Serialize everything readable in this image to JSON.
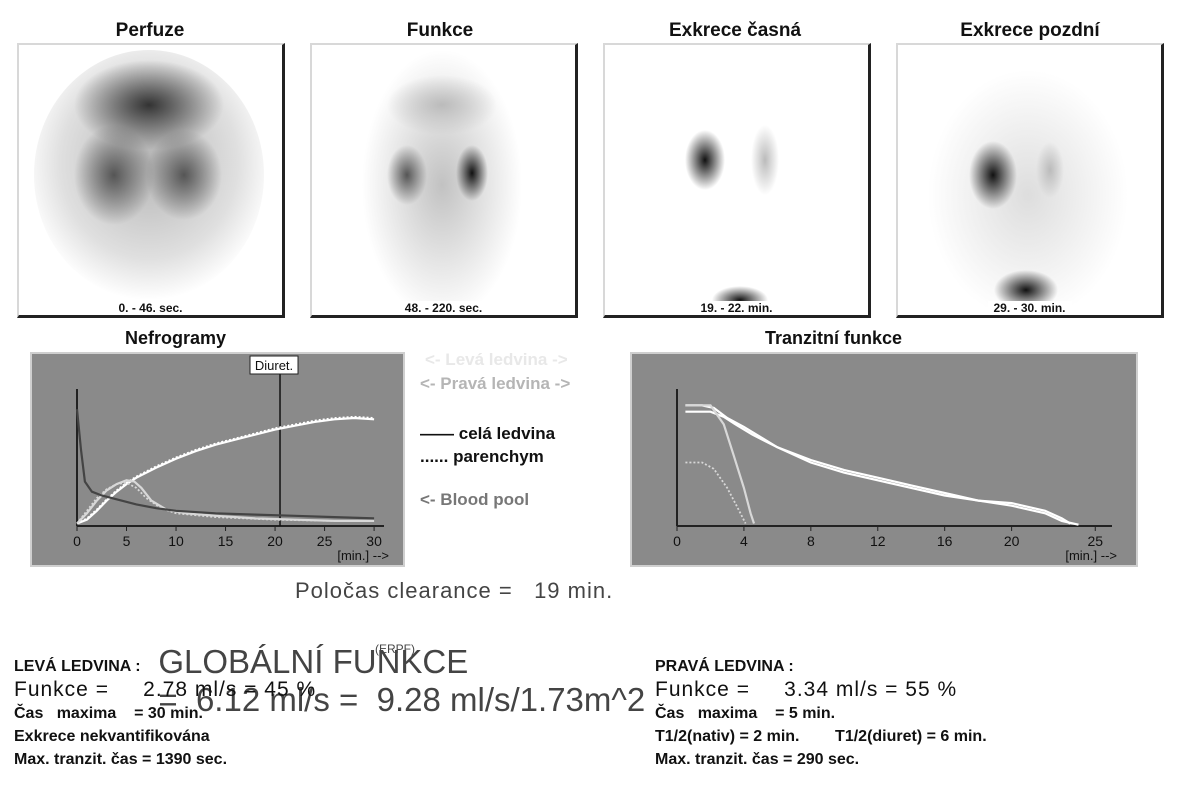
{
  "scans": [
    {
      "title": "Perfuze",
      "time": "0. - 46. sec."
    },
    {
      "title": "Funkce",
      "time": "48. - 220. sec."
    },
    {
      "title": "Exkrece časná",
      "time": "19. - 22. min."
    },
    {
      "title": "Exkrece pozdní",
      "time": "29. - 30. min."
    }
  ],
  "legend": {
    "left": "<- Levá ledvina ->",
    "right": "<- Pravá ledvina ->",
    "whole": "celá ledvina",
    "parenchyma": "parenchym",
    "blood_pool": "<- Blood pool",
    "whole_dash": "——",
    "parenchyma_dots": "......"
  },
  "chart_data": [
    {
      "type": "line",
      "title": "Nefrogramy",
      "xlabel": "[min.] -->",
      "xticks": [
        0,
        5,
        10,
        15,
        20,
        25,
        30
      ],
      "xlim": [
        0,
        31
      ],
      "annotation": {
        "label": "Diuret.",
        "x": 20.5
      },
      "series": [
        {
          "color": "#ffffff",
          "style": "solid",
          "points": [
            [
              0,
              0.02
            ],
            [
              1,
              0.05
            ],
            [
              2,
              0.12
            ],
            [
              3,
              0.2
            ],
            [
              4,
              0.27
            ],
            [
              5,
              0.33
            ],
            [
              6,
              0.38
            ],
            [
              8,
              0.46
            ],
            [
              10,
              0.53
            ],
            [
              12,
              0.59
            ],
            [
              14,
              0.64
            ],
            [
              16,
              0.68
            ],
            [
              18,
              0.72
            ],
            [
              20,
              0.76
            ],
            [
              22,
              0.79
            ],
            [
              24,
              0.82
            ],
            [
              26,
              0.84
            ],
            [
              28,
              0.85
            ],
            [
              30,
              0.84
            ]
          ]
        },
        {
          "color": "#ffffff",
          "style": "dotted",
          "points": [
            [
              0,
              0.02
            ],
            [
              1,
              0.06
            ],
            [
              2,
              0.13
            ],
            [
              3,
              0.21
            ],
            [
              4,
              0.28
            ],
            [
              5,
              0.34
            ],
            [
              6,
              0.39
            ],
            [
              8,
              0.47
            ],
            [
              10,
              0.54
            ],
            [
              12,
              0.6
            ],
            [
              14,
              0.65
            ],
            [
              16,
              0.69
            ],
            [
              18,
              0.73
            ],
            [
              20,
              0.77
            ],
            [
              22,
              0.8
            ],
            [
              24,
              0.83
            ],
            [
              26,
              0.85
            ],
            [
              28,
              0.86
            ],
            [
              30,
              0.85
            ]
          ]
        },
        {
          "color": "#d8d8d8",
          "style": "solid",
          "points": [
            [
              0,
              0.02
            ],
            [
              1,
              0.1
            ],
            [
              2,
              0.2
            ],
            [
              3,
              0.28
            ],
            [
              4,
              0.33
            ],
            [
              5,
              0.36
            ],
            [
              5.8,
              0.35
            ],
            [
              6.5,
              0.3
            ],
            [
              7.5,
              0.2
            ],
            [
              9,
              0.13
            ],
            [
              11,
              0.1
            ],
            [
              14,
              0.08
            ],
            [
              18,
              0.06
            ],
            [
              22,
              0.05
            ],
            [
              26,
              0.04
            ],
            [
              30,
              0.04
            ]
          ]
        },
        {
          "color": "#d8d8d8",
          "style": "dotted",
          "points": [
            [
              0,
              0.02
            ],
            [
              1,
              0.12
            ],
            [
              2,
              0.22
            ],
            [
              3,
              0.29
            ],
            [
              4,
              0.33
            ],
            [
              5,
              0.34
            ],
            [
              6,
              0.3
            ],
            [
              7,
              0.22
            ],
            [
              8.5,
              0.14
            ],
            [
              10,
              0.1
            ],
            [
              14,
              0.07
            ],
            [
              20,
              0.05
            ],
            [
              26,
              0.04
            ],
            [
              30,
              0.04
            ]
          ]
        },
        {
          "color": "#444444",
          "style": "solid",
          "points": [
            [
              0,
              0.92
            ],
            [
              0.4,
              0.6
            ],
            [
              0.8,
              0.35
            ],
            [
              1.5,
              0.27
            ],
            [
              2.5,
              0.24
            ],
            [
              4,
              0.21
            ],
            [
              6,
              0.17
            ],
            [
              8,
              0.14
            ],
            [
              10,
              0.12
            ],
            [
              14,
              0.1
            ],
            [
              18,
              0.09
            ],
            [
              22,
              0.08
            ],
            [
              26,
              0.07
            ],
            [
              30,
              0.06
            ]
          ]
        }
      ]
    },
    {
      "type": "line",
      "title": "Tranzitní funkce",
      "xlabel": "[min.] -->",
      "xticks": [
        0,
        4,
        8,
        12,
        16,
        20,
        25
      ],
      "xlim": [
        0,
        26
      ],
      "series": [
        {
          "color": "#ffffff",
          "style": "solid",
          "points": [
            [
              0.5,
              0.95
            ],
            [
              1.5,
              0.95
            ],
            [
              2.2,
              0.93
            ],
            [
              3,
              0.85
            ],
            [
              4,
              0.78
            ],
            [
              6,
              0.62
            ],
            [
              8,
              0.52
            ],
            [
              10,
              0.44
            ],
            [
              12,
              0.38
            ],
            [
              14,
              0.32
            ],
            [
              16,
              0.26
            ],
            [
              18,
              0.2
            ],
            [
              20,
              0.18
            ],
            [
              22,
              0.12
            ],
            [
              23,
              0.06
            ],
            [
              23.5,
              0.02
            ]
          ]
        },
        {
          "color": "#ffffff",
          "style": "solid",
          "points": [
            [
              0.5,
              0.9
            ],
            [
              2,
              0.9
            ],
            [
              2.8,
              0.86
            ],
            [
              3.5,
              0.8
            ],
            [
              4.5,
              0.72
            ],
            [
              6,
              0.62
            ],
            [
              8,
              0.5
            ],
            [
              10,
              0.42
            ],
            [
              12,
              0.36
            ],
            [
              14,
              0.3
            ],
            [
              16,
              0.24
            ],
            [
              18,
              0.2
            ],
            [
              20,
              0.16
            ],
            [
              22,
              0.1
            ],
            [
              23,
              0.04
            ],
            [
              24,
              0.01
            ]
          ]
        },
        {
          "color": "#d8d8d8",
          "style": "solid",
          "points": [
            [
              0.5,
              0.95
            ],
            [
              2,
              0.95
            ],
            [
              2.8,
              0.8
            ],
            [
              3.4,
              0.55
            ],
            [
              4,
              0.3
            ],
            [
              4.4,
              0.1
            ],
            [
              4.6,
              0.02
            ]
          ]
        },
        {
          "color": "#d8d8d8",
          "style": "dotted",
          "points": [
            [
              0.5,
              0.5
            ],
            [
              1.5,
              0.5
            ],
            [
              2.2,
              0.45
            ],
            [
              3,
              0.3
            ],
            [
              3.6,
              0.15
            ],
            [
              4.1,
              0.02
            ]
          ]
        }
      ]
    }
  ],
  "clearance": "Poločas clearance =   19 min.",
  "global_label": "GLOBÁLNÍ FUNKCE",
  "global_values": "=  6.12 ml/s =  9.28 ml/s/1.73m^2",
  "erpf": "(ERPF)",
  "left_kidney": {
    "heading": "LEVÁ LEDVINA :",
    "funkce": "Funkce =     2.78 ml/s = 45 %",
    "lines": [
      "Čas   maxima    = 30 min.",
      "Exkrece nekvantifikována",
      "Max. tranzit. čas = 1390 sec."
    ]
  },
  "right_kidney": {
    "heading": "PRAVÁ LEDVINA :",
    "funkce": "Funkce =     3.34 ml/s = 55 %",
    "lines": [
      "Čas   maxima    = 5 min.",
      "T1/2(nativ) = 2 min.        T1/2(diuret) = 6 min.",
      "Max. tranzit. čas = 290 sec."
    ]
  }
}
